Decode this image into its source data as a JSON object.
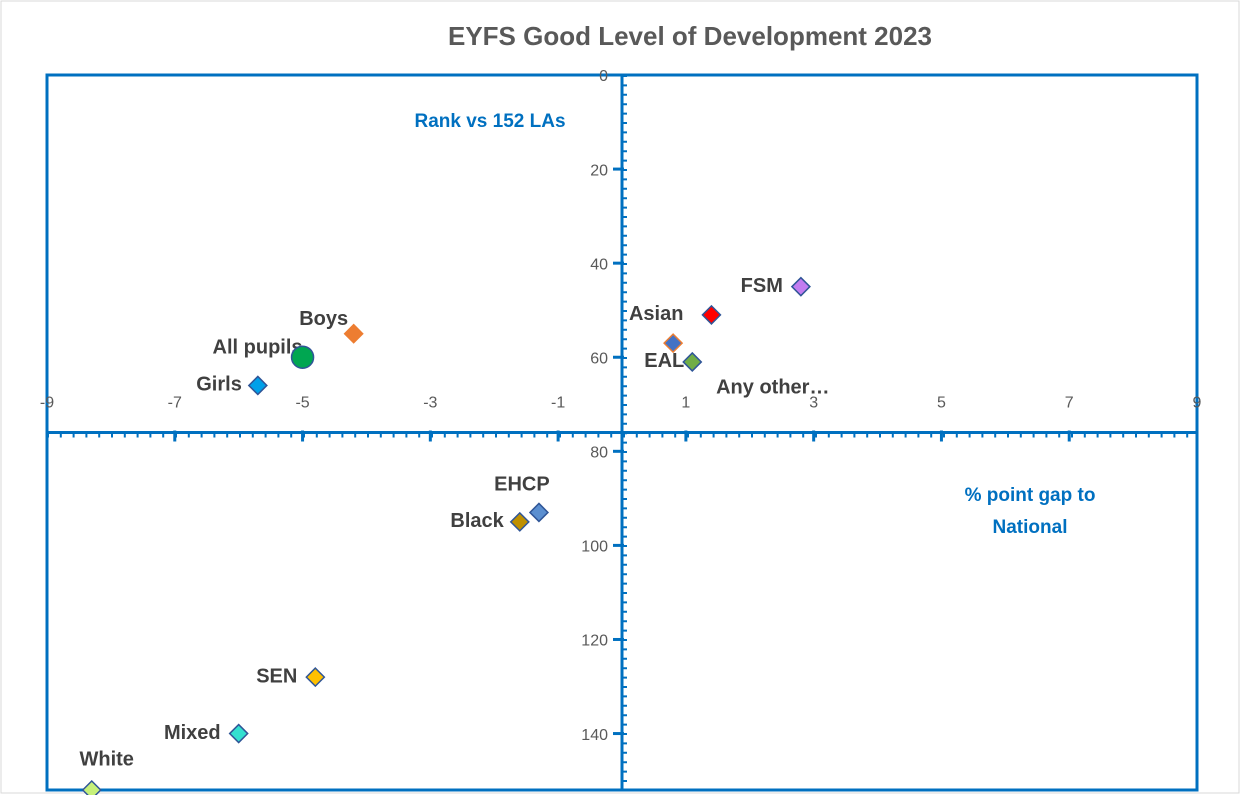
{
  "chart_data": {
    "type": "scatter",
    "title": "EYFS Good Level of Development 2023",
    "ylabel": "Rank vs 152 LAs",
    "xlabel": "% point gap to National",
    "xlim": [
      -9,
      9
    ],
    "ylim": [
      0,
      152
    ],
    "y_reversed": true,
    "x_axis_crosses_at_y": 76,
    "y_axis_crosses_at_x": 0,
    "xticks": [
      -9,
      -7,
      -5,
      -3,
      -1,
      1,
      3,
      5,
      7,
      9
    ],
    "yticks": [
      0,
      20,
      40,
      60,
      80,
      100,
      120,
      140
    ],
    "axis_color": "#0070c0",
    "series": [
      {
        "name": "All pupils",
        "color": "#00a651",
        "edgecolor": "#2f5597",
        "marker": "circle",
        "x": [
          -5.0
        ],
        "values": [
          60
        ]
      },
      {
        "name": "Boys",
        "color": "#ed7d31",
        "edgecolor": "#ed7d31",
        "marker": "diamond",
        "x": [
          -4.2
        ],
        "values": [
          55
        ]
      },
      {
        "name": "Girls",
        "color": "#00a0e9",
        "edgecolor": "#2f5597",
        "marker": "diamond",
        "x": [
          -5.7
        ],
        "values": [
          66
        ]
      },
      {
        "name": "FSM",
        "color": "#c27cf0",
        "edgecolor": "#2f5597",
        "marker": "diamond",
        "x": [
          2.8
        ],
        "values": [
          45
        ]
      },
      {
        "name": "Asian",
        "color": "#ff0000",
        "edgecolor": "#2f5597",
        "marker": "diamond",
        "x": [
          1.4
        ],
        "values": [
          51
        ]
      },
      {
        "name": "Any other…",
        "color": "#4472c4",
        "edgecolor": "#ed7d31",
        "marker": "diamond",
        "x": [
          0.8
        ],
        "values": [
          57
        ]
      },
      {
        "name": "EAL",
        "color": "#70ad47",
        "edgecolor": "#2f5597",
        "marker": "diamond",
        "x": [
          1.1
        ],
        "values": [
          61
        ]
      },
      {
        "name": "EHCP",
        "color": "#5b8fd0",
        "edgecolor": "#2f5597",
        "marker": "diamond",
        "x": [
          -1.3
        ],
        "values": [
          93
        ]
      },
      {
        "name": "Black",
        "color": "#bf9000",
        "edgecolor": "#2f5597",
        "marker": "diamond",
        "x": [
          -1.6
        ],
        "values": [
          95
        ]
      },
      {
        "name": "SEN",
        "color": "#ffc000",
        "edgecolor": "#2f5597",
        "marker": "diamond",
        "x": [
          -4.8
        ],
        "values": [
          128
        ]
      },
      {
        "name": "Mixed",
        "color": "#33e0d0",
        "edgecolor": "#2f5597",
        "marker": "diamond",
        "x": [
          -6.0
        ],
        "values": [
          140
        ]
      },
      {
        "name": "White",
        "color": "#c6f07a",
        "edgecolor": "#2f5597",
        "marker": "diamond",
        "x": [
          -8.3
        ],
        "values": [
          152
        ]
      }
    ]
  }
}
